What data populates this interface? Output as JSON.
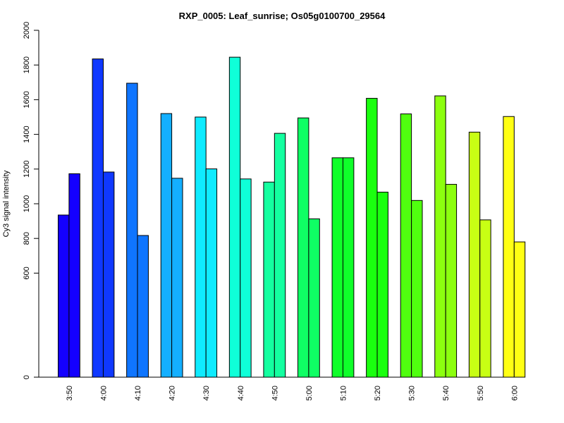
{
  "chart_data": {
    "type": "bar",
    "title": "RXP_0005: Leaf_sunrise; Os05g0100700_29564",
    "xlabel": "",
    "ylabel": "Cy3 signal intensity",
    "categories": [
      "3:50",
      "4:00",
      "4:10",
      "4:20",
      "4:30",
      "4:40",
      "4:50",
      "5:00",
      "5:10",
      "5:20",
      "5:30",
      "5:40",
      "5:50",
      "6:00"
    ],
    "series": [
      {
        "values": [
          935,
          1835,
          1695,
          1520,
          1500,
          1845,
          1125,
          1495,
          1265,
          1608,
          1518,
          1622,
          1413,
          1503
        ]
      },
      {
        "values": [
          1173,
          1183,
          817,
          1147,
          1201,
          1143,
          1406,
          913,
          1265,
          1067,
          1019,
          1112,
          907,
          780
        ]
      }
    ],
    "colors": [
      "#1400FF",
      "#0F38FF",
      "#0F75FF",
      "#14AFFF",
      "#0FEBFF",
      "#0FFFD8",
      "#14FFA0",
      "#0FFF64",
      "#0FFF2A",
      "#1AFF0F",
      "#50FF0F",
      "#8CFF0F",
      "#C8FF14",
      "#FFFF14"
    ],
    "ylim": [
      0,
      2000
    ],
    "yticks": [
      0,
      600,
      800,
      1000,
      1200,
      1400,
      1600,
      1800,
      2000
    ],
    "grid": false,
    "legend": "none"
  }
}
